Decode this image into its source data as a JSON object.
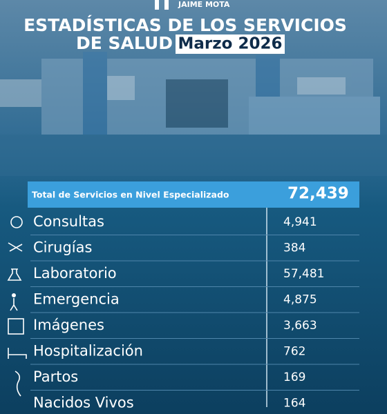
{
  "header": {
    "brand": "JAIME MOTA"
  },
  "title": {
    "line1": "ESTADÍSTICAS DE LOS SERVICIOS",
    "line2": "DE SALUD",
    "period": "Marzo 2026"
  },
  "table": {
    "total": {
      "label": "Total de Servicios en Nivel Especializado",
      "value": "72,439"
    },
    "rows": [
      [
        "Consultas",
        "4,941"
      ],
      [
        "Cirugías",
        "384"
      ],
      [
        "Laboratorio",
        "57,481"
      ],
      [
        "Emergencia",
        "4,875"
      ],
      [
        "Imágenes",
        "3,663"
      ],
      [
        "Hospitalización",
        "762"
      ],
      [
        "Partos",
        "169"
      ],
      [
        "Nacidos Vivos",
        "164"
      ]
    ]
  }
}
